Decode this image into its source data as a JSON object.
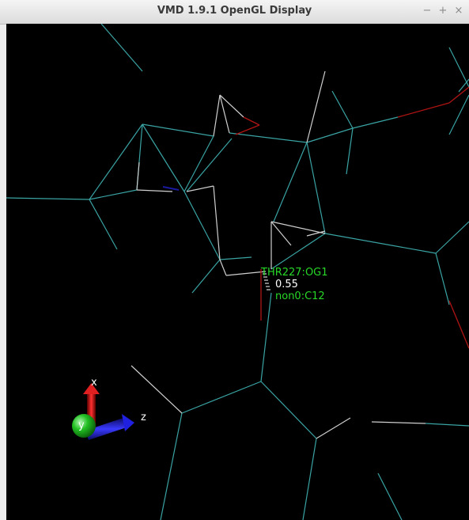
{
  "window": {
    "title": "VMD 1.9.1 OpenGL Display",
    "controls": {
      "minimize": "−",
      "maximize": "+",
      "close": "×"
    }
  },
  "scene": {
    "atom_label_1": "THR227:OG1",
    "distance_label": "0.55",
    "atom_label_2": "non0:C12",
    "axes": {
      "x": "x",
      "y": "y",
      "z": "z"
    }
  },
  "colors": {
    "background": "#000000",
    "bond_cyan": "#3aa3a3",
    "bond_white": "#cfcfcf",
    "bond_red": "#b01414",
    "bond_blue": "#1a1aa0",
    "label_green": "#27d827",
    "label_white": "#ffffff"
  }
}
